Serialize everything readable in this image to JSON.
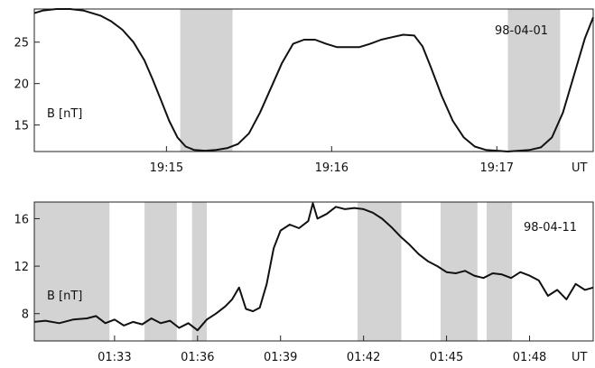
{
  "chart_data": [
    {
      "type": "line",
      "ylabel": "B [nT]",
      "date_label": "98-04-01",
      "x_unit_label": "UT",
      "xlim": [
        "19:14:12",
        "19:17:35"
      ],
      "ylim": [
        11.8,
        29
      ],
      "yticks": [
        15,
        20,
        25
      ],
      "ytick_labels": [
        "15",
        "20",
        "25"
      ],
      "xticks": [
        "19:15:00",
        "19:16:00",
        "19:17:00"
      ],
      "xtick_labels": [
        "19:15",
        "19:16",
        "19:17"
      ],
      "shaded_intervals": [
        [
          "19:15:05",
          "19:15:24"
        ],
        [
          "19:17:04",
          "19:17:23"
        ]
      ],
      "series": [
        {
          "x": [
            "19:14:12",
            "19:14:15",
            "19:14:20",
            "19:14:25",
            "19:14:30",
            "19:14:36",
            "19:14:40",
            "19:14:44",
            "19:14:48",
            "19:14:52",
            "19:14:55",
            "19:14:58",
            "19:15:01",
            "19:15:04",
            "19:15:07",
            "19:15:10",
            "19:15:14",
            "19:15:18",
            "19:15:22",
            "19:15:26",
            "19:15:30",
            "19:15:34",
            "19:15:38",
            "19:15:42",
            "19:15:46",
            "19:15:50",
            "19:15:54",
            "19:15:58",
            "19:16:02",
            "19:16:06",
            "19:16:10",
            "19:16:14",
            "19:16:18",
            "19:16:22",
            "19:16:26",
            "19:16:30",
            "19:16:33",
            "19:16:36",
            "19:16:40",
            "19:16:44",
            "19:16:48",
            "19:16:52",
            "19:16:56",
            "19:17:00",
            "19:17:04",
            "19:17:08",
            "19:17:12",
            "19:17:16",
            "19:17:20",
            "19:17:24",
            "19:17:28",
            "19:17:32",
            "19:17:35"
          ],
          "y": [
            28.5,
            28.8,
            29.0,
            29.0,
            28.8,
            28.2,
            27.5,
            26.5,
            25.0,
            22.8,
            20.5,
            18.0,
            15.5,
            13.5,
            12.4,
            12.0,
            11.9,
            12.0,
            12.2,
            12.7,
            14.0,
            16.5,
            19.5,
            22.5,
            24.8,
            25.3,
            25.3,
            24.8,
            24.4,
            24.4,
            24.4,
            24.8,
            25.3,
            25.6,
            25.9,
            25.8,
            24.5,
            22.0,
            18.5,
            15.5,
            13.5,
            12.4,
            12.0,
            11.9,
            11.8,
            11.9,
            12.0,
            12.3,
            13.5,
            16.5,
            21.0,
            25.5,
            28.0
          ]
        }
      ]
    },
    {
      "type": "line",
      "ylabel": "B [nT]",
      "date_label": "98-04-11",
      "x_unit_label": "UT",
      "xlim": [
        "01:30:06",
        "01:50:18"
      ],
      "ylim": [
        5.7,
        17.4
      ],
      "yticks": [
        8,
        12,
        16
      ],
      "ytick_labels": [
        "8",
        "12",
        "16"
      ],
      "xticks": [
        "01:33:00",
        "01:36:00",
        "01:39:00",
        "01:42:00",
        "01:45:00",
        "01:48:00"
      ],
      "xtick_labels": [
        "01:33",
        "01:36",
        "01:39",
        "01:42",
        "01:45",
        "01:48"
      ],
      "shaded_intervals": [
        [
          "01:30:06",
          "01:32:49"
        ],
        [
          "01:34:05",
          "01:35:15"
        ],
        [
          "01:35:48",
          "01:36:20"
        ],
        [
          "01:41:47",
          "01:43:22"
        ],
        [
          "01:44:47",
          "01:46:07"
        ],
        [
          "01:46:27",
          "01:47:22"
        ]
      ],
      "series": [
        {
          "x": [
            "01:30:06",
            "01:30:30",
            "01:31:00",
            "01:31:30",
            "01:32:00",
            "01:32:20",
            "01:32:40",
            "01:33:00",
            "01:33:20",
            "01:33:40",
            "01:34:00",
            "01:34:20",
            "01:34:40",
            "01:35:00",
            "01:35:20",
            "01:35:40",
            "01:36:00",
            "01:36:20",
            "01:36:40",
            "01:37:00",
            "01:37:15",
            "01:37:30",
            "01:37:45",
            "01:38:00",
            "01:38:15",
            "01:38:30",
            "01:38:45",
            "01:39:00",
            "01:39:20",
            "01:39:40",
            "01:40:00",
            "01:40:10",
            "01:40:20",
            "01:40:40",
            "01:41:00",
            "01:41:20",
            "01:41:40",
            "01:42:00",
            "01:42:20",
            "01:42:40",
            "01:43:00",
            "01:43:20",
            "01:43:40",
            "01:44:00",
            "01:44:20",
            "01:44:40",
            "01:45:00",
            "01:45:20",
            "01:45:40",
            "01:46:00",
            "01:46:20",
            "01:46:40",
            "01:47:00",
            "01:47:20",
            "01:47:40",
            "01:48:00",
            "01:48:20",
            "01:48:40",
            "01:49:00",
            "01:49:20",
            "01:49:40",
            "01:50:00",
            "01:50:18"
          ],
          "y": [
            7.3,
            7.4,
            7.2,
            7.5,
            7.6,
            7.8,
            7.2,
            7.5,
            7.0,
            7.3,
            7.1,
            7.6,
            7.2,
            7.4,
            6.8,
            7.2,
            6.6,
            7.5,
            8.0,
            8.6,
            9.2,
            10.2,
            8.4,
            8.2,
            8.5,
            10.5,
            13.5,
            15.0,
            15.5,
            15.2,
            15.8,
            17.3,
            16.0,
            16.4,
            17.0,
            16.8,
            16.9,
            16.8,
            16.5,
            16.0,
            15.3,
            14.5,
            13.8,
            13.0,
            12.4,
            12.0,
            11.5,
            11.4,
            11.6,
            11.2,
            11.0,
            11.4,
            11.3,
            11.0,
            11.5,
            11.2,
            10.8,
            9.5,
            10.0,
            9.2,
            10.5,
            10.0,
            10.2
          ]
        }
      ]
    }
  ]
}
